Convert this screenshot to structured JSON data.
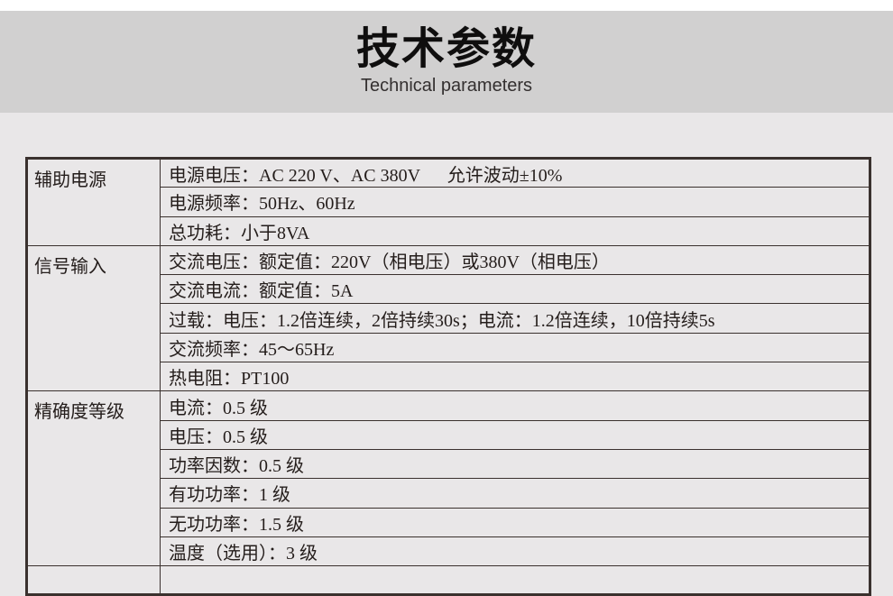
{
  "header": {
    "title": "技术参数",
    "subtitle": "Technical parameters"
  },
  "colors": {
    "header_band": "#d1d0d0",
    "page_background": "#e9e7e8",
    "table_border": "#3a312e",
    "text": "#241d1b"
  },
  "table": {
    "groups": [
      {
        "label": "辅助电源",
        "rows": [
          "电源电压：AC 220 V、AC 380V      允许波动±10%",
          "电源频率：50Hz、60Hz",
          "总功耗：小于8VA"
        ]
      },
      {
        "label": "信号输入",
        "rows": [
          "交流电压：额定值：220V（相电压）或380V（相电压）",
          "交流电流：额定值：5A",
          "过载：电压：1.2倍连续，2倍持续30s；电流：1.2倍连续，10倍持续5s",
          "交流频率：45～65Hz",
          "热电阻：PT100"
        ]
      },
      {
        "label": "精确度等级",
        "rows": [
          "电流：0.5 级",
          "电压：0.5 级",
          "功率因数：0.5 级",
          "有功功率：1 级",
          "无功功率：1.5 级",
          "温度（选用）：3 级"
        ]
      }
    ]
  }
}
